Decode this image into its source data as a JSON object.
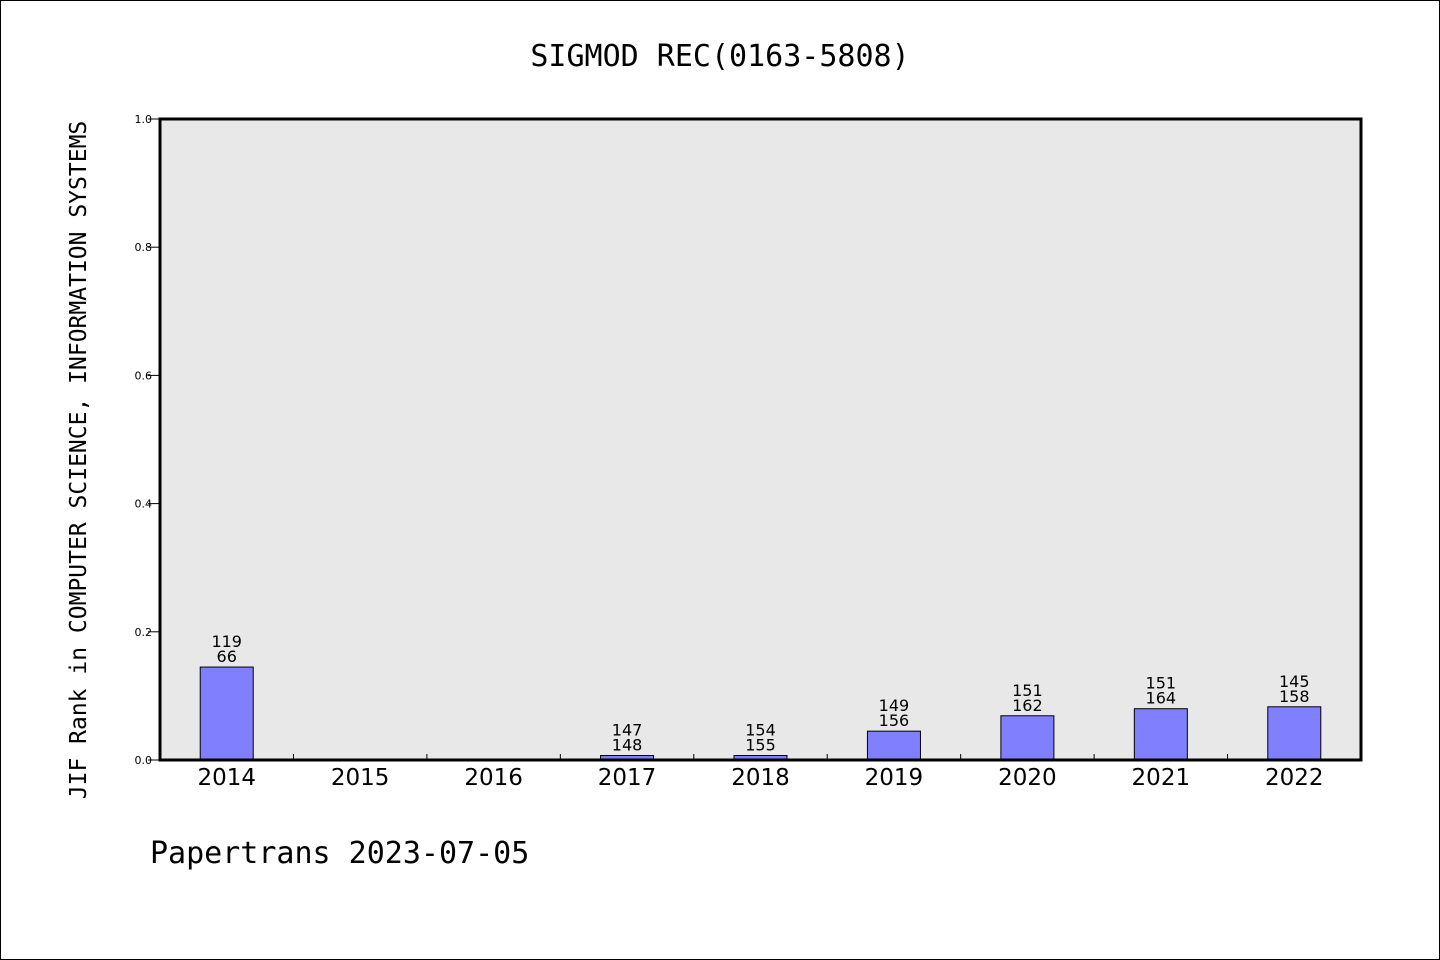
{
  "chart_data": {
    "type": "bar",
    "title": "SIGMOD REC(0163-5808)",
    "ylabel": "JIF Rank in COMPUTER SCIENCE, INFORMATION SYSTEMS",
    "xlabel": "",
    "ylim": [
      0,
      1.0
    ],
    "yticks": [
      "0.0",
      "0.2",
      "0.4",
      "0.6",
      "0.8",
      "1.0"
    ],
    "categories": [
      "2014",
      "2015",
      "2016",
      "2017",
      "2018",
      "2019",
      "2020",
      "2021",
      "2022"
    ],
    "values": [
      0.145,
      null,
      null,
      0.007,
      0.007,
      0.045,
      0.069,
      0.08,
      0.083
    ],
    "labels_top": [
      "119",
      "",
      "",
      "147",
      "154",
      "149",
      "151",
      "151",
      "145"
    ],
    "labels_bottom": [
      "66",
      "",
      "",
      "148",
      "155",
      "156",
      "162",
      "164",
      "158"
    ],
    "grid": false,
    "colors": {
      "bar": "#8080ff",
      "plot_bg": "#e8e8e8"
    }
  },
  "footer": {
    "text": "Papertrans 2023-07-05"
  }
}
